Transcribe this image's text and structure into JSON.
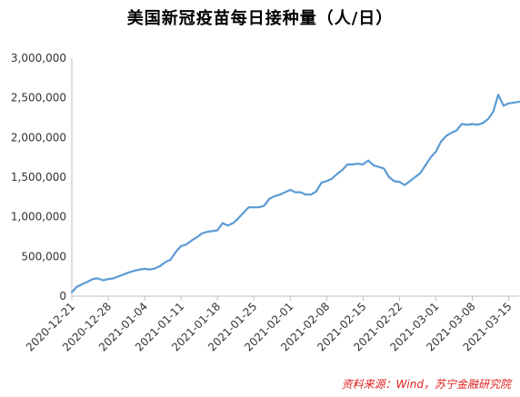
{
  "chart_data": {
    "type": "line",
    "title": "美国新冠疫苗每日接种量（人/日）",
    "xlabel": "",
    "ylabel": "",
    "ylim": [
      0,
      3000000
    ],
    "yticks": [
      "0",
      "500,000",
      "1,000,000",
      "1,500,000",
      "2,000,000",
      "2,500,000",
      "3,000,000"
    ],
    "xticks": [
      "2020-12-21",
      "2020-12-28",
      "2021-01-04",
      "2021-01-11",
      "2021-01-18",
      "2021-01-25",
      "2021-02-01",
      "2021-02-08",
      "2021-02-15",
      "2021-02-22",
      "2021-03-01",
      "2021-03-08",
      "2021-03-15"
    ],
    "grid": false,
    "legend": "none",
    "line_color": "#5b9bd5",
    "x": [
      "2020-12-21",
      "2020-12-22",
      "2020-12-23",
      "2020-12-24",
      "2020-12-25",
      "2020-12-26",
      "2020-12-27",
      "2020-12-28",
      "2020-12-29",
      "2020-12-30",
      "2020-12-31",
      "2021-01-01",
      "2021-01-02",
      "2021-01-03",
      "2021-01-04",
      "2021-01-05",
      "2021-01-06",
      "2021-01-07",
      "2021-01-08",
      "2021-01-09",
      "2021-01-10",
      "2021-01-11",
      "2021-01-12",
      "2021-01-13",
      "2021-01-14",
      "2021-01-15",
      "2021-01-16",
      "2021-01-17",
      "2021-01-18",
      "2021-01-19",
      "2021-01-20",
      "2021-01-21",
      "2021-01-22",
      "2021-01-23",
      "2021-01-24",
      "2021-01-25",
      "2021-01-26",
      "2021-01-27",
      "2021-01-28",
      "2021-01-29",
      "2021-01-30",
      "2021-01-31",
      "2021-02-01",
      "2021-02-02",
      "2021-02-03",
      "2021-02-04",
      "2021-02-05",
      "2021-02-06",
      "2021-02-07",
      "2021-02-08",
      "2021-02-09",
      "2021-02-10",
      "2021-02-11",
      "2021-02-12",
      "2021-02-13",
      "2021-02-14",
      "2021-02-15",
      "2021-02-16",
      "2021-02-17",
      "2021-02-18",
      "2021-02-19",
      "2021-02-20",
      "2021-02-21",
      "2021-02-22",
      "2021-02-23",
      "2021-02-24",
      "2021-02-25",
      "2021-02-26",
      "2021-02-27",
      "2021-02-28",
      "2021-03-01",
      "2021-03-02",
      "2021-03-03",
      "2021-03-04",
      "2021-03-05",
      "2021-03-06",
      "2021-03-07",
      "2021-03-08",
      "2021-03-09",
      "2021-03-10",
      "2021-03-11",
      "2021-03-12",
      "2021-03-13",
      "2021-03-14",
      "2021-03-15",
      "2021-03-16",
      "2021-03-17"
    ],
    "values": [
      50000,
      120000,
      150000,
      180000,
      215000,
      225000,
      200000,
      215000,
      225000,
      250000,
      275000,
      300000,
      320000,
      335000,
      345000,
      335000,
      350000,
      380000,
      430000,
      460000,
      560000,
      630000,
      650000,
      700000,
      740000,
      790000,
      810000,
      820000,
      830000,
      920000,
      890000,
      920000,
      980000,
      1050000,
      1120000,
      1120000,
      1120000,
      1140000,
      1230000,
      1260000,
      1280000,
      1310000,
      1340000,
      1310000,
      1310000,
      1280000,
      1280000,
      1320000,
      1430000,
      1450000,
      1480000,
      1540000,
      1590000,
      1660000,
      1660000,
      1670000,
      1660000,
      1710000,
      1650000,
      1630000,
      1610000,
      1500000,
      1450000,
      1440000,
      1400000,
      1450000,
      1500000,
      1550000,
      1650000,
      1750000,
      1820000,
      1950000,
      2020000,
      2060000,
      2090000,
      2170000,
      2160000,
      2170000,
      2160000,
      2180000,
      2230000,
      2320000,
      2540000,
      2400000,
      2430000,
      2440000,
      2450000
    ]
  },
  "source_note": "资料来源：Wind，苏宁金融研究院"
}
